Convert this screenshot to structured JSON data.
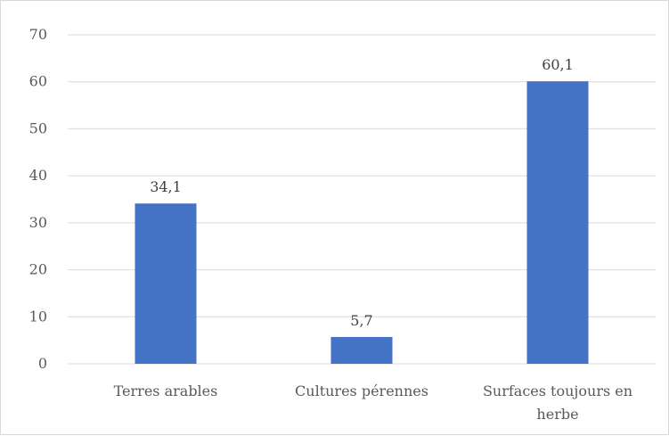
{
  "chart_data": {
    "type": "bar",
    "title": "",
    "xlabel": "",
    "ylabel": "",
    "categories": [
      [
        "Terres arables"
      ],
      [
        "Cultures pérennes"
      ],
      [
        "Surfaces toujours en",
        "herbe"
      ]
    ],
    "values": [
      34.1,
      5.7,
      60.1
    ],
    "value_labels": [
      "34,1",
      "5,7",
      "60,1"
    ],
    "ylim": [
      0,
      70
    ],
    "yticks": [
      0,
      10,
      20,
      30,
      40,
      50,
      60,
      70
    ],
    "ytick_labels": [
      "0",
      "10",
      "20",
      "30",
      "40",
      "50",
      "60",
      "70"
    ],
    "grid": true,
    "legend": "none",
    "bar_color": "#4472C4",
    "grid_color": "#d9d9d9"
  }
}
